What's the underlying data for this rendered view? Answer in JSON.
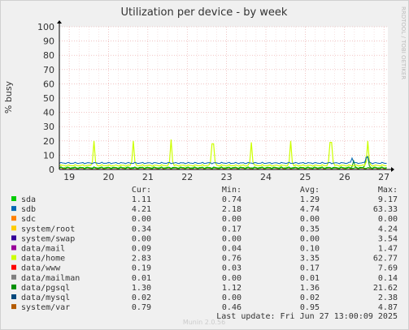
{
  "chart_data": {
    "type": "line",
    "title": "Utilization per device - by week",
    "ylabel": "% busy",
    "xlabel": "",
    "ylim": [
      0,
      100
    ],
    "yticks": [
      0,
      10,
      20,
      30,
      40,
      50,
      60,
      70,
      80,
      90,
      100
    ],
    "xlim": [
      18.75,
      27.1
    ],
    "xticks": [
      19,
      20,
      21,
      22,
      23,
      24,
      25,
      26,
      27
    ],
    "grid": true,
    "side_label": "RRDTOOL / TOBI OETIKER",
    "columns": [
      "Cur:",
      "Min:",
      "Avg:",
      "Max:"
    ],
    "legend": [
      {
        "name": "sda",
        "color": "#00cc00",
        "cur": "1.11",
        "min": "0.74",
        "avg": "1.29",
        "max": "9.17"
      },
      {
        "name": "sdb",
        "color": "#0066b3",
        "cur": "4.21",
        "min": "2.18",
        "avg": "4.74",
        "max": "63.33"
      },
      {
        "name": "sdc",
        "color": "#ff8000",
        "cur": "0.00",
        "min": "0.00",
        "avg": "0.00",
        "max": "0.00"
      },
      {
        "name": "system/root",
        "color": "#ffcc00",
        "cur": "0.34",
        "min": "0.17",
        "avg": "0.35",
        "max": "4.24"
      },
      {
        "name": "system/swap",
        "color": "#330099",
        "cur": "0.00",
        "min": "0.00",
        "avg": "0.00",
        "max": "3.54"
      },
      {
        "name": "data/mail",
        "color": "#990099",
        "cur": "0.09",
        "min": "0.04",
        "avg": "0.10",
        "max": "1.47"
      },
      {
        "name": "data/home",
        "color": "#ccff00",
        "cur": "2.83",
        "min": "0.76",
        "avg": "3.35",
        "max": "62.77"
      },
      {
        "name": "data/www",
        "color": "#ff0000",
        "cur": "0.19",
        "min": "0.03",
        "avg": "0.17",
        "max": "7.69"
      },
      {
        "name": "data/mailman",
        "color": "#808080",
        "cur": "0.01",
        "min": "0.00",
        "avg": "0.01",
        "max": "0.14"
      },
      {
        "name": "data/pgsql",
        "color": "#008f00",
        "cur": "1.30",
        "min": "1.12",
        "avg": "1.36",
        "max": "21.62"
      },
      {
        "name": "data/mysql",
        "color": "#00487d",
        "cur": "0.02",
        "min": "0.00",
        "avg": "0.02",
        "max": "2.38"
      },
      {
        "name": "system/var",
        "color": "#b35a00",
        "cur": "0.79",
        "min": "0.46",
        "avg": "0.95",
        "max": "4.87"
      }
    ],
    "spikes": {
      "data/home": [
        [
          19.63,
          20
        ],
        [
          20.62,
          20
        ],
        [
          21.6,
          21
        ],
        [
          22.65,
          18
        ],
        [
          23.62,
          19
        ],
        [
          24.62,
          20
        ],
        [
          25.65,
          19
        ],
        [
          26.6,
          20
        ]
      ],
      "sdb": [
        [
          26.2,
          8
        ],
        [
          26.23,
          5
        ],
        [
          26.55,
          8
        ],
        [
          26.6,
          9
        ]
      ],
      "data/pgsql": [
        [
          26.22,
          6
        ],
        [
          26.57,
          9
        ]
      ]
    },
    "baselines": {
      "sdb": 4.5,
      "data/home": 2.8,
      "data/pgsql": 1.3,
      "sda": 1.1,
      "system/var": 0.8
    }
  },
  "footer": {
    "last_update": "Last update: Fri Jun 27 13:00:09 2025",
    "munin": "Munin 2.0.56"
  }
}
